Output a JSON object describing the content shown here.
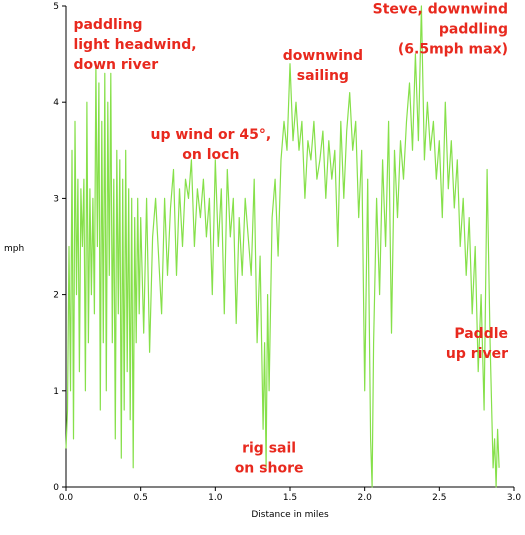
{
  "chart_data": {
    "type": "line",
    "xlabel": "Distance in miles",
    "ylabel": "mph",
    "xlim": [
      0.0,
      3.0
    ],
    "ylim": [
      0,
      5
    ],
    "x_ticks": [
      "0.0",
      "0.5",
      "1.0",
      "1.5",
      "2.0",
      "2.5",
      "3.0"
    ],
    "y_ticks": [
      "0",
      "1",
      "2",
      "3",
      "4",
      "5"
    ],
    "grid": false,
    "line_color": "#86e04a",
    "annotation_color": "#e8291e",
    "series": [
      {
        "name": "",
        "x": [
          0.0,
          0.01,
          0.02,
          0.03,
          0.04,
          0.05,
          0.06,
          0.07,
          0.08,
          0.09,
          0.1,
          0.11,
          0.12,
          0.13,
          0.14,
          0.15,
          0.16,
          0.17,
          0.18,
          0.19,
          0.2,
          0.21,
          0.22,
          0.23,
          0.24,
          0.25,
          0.26,
          0.27,
          0.28,
          0.29,
          0.3,
          0.31,
          0.32,
          0.33,
          0.34,
          0.35,
          0.36,
          0.37,
          0.38,
          0.39,
          0.4,
          0.41,
          0.42,
          0.43,
          0.44,
          0.45,
          0.46,
          0.47,
          0.48,
          0.49,
          0.5,
          0.52,
          0.54,
          0.56,
          0.58,
          0.6,
          0.62,
          0.64,
          0.66,
          0.68,
          0.7,
          0.72,
          0.74,
          0.76,
          0.78,
          0.8,
          0.82,
          0.84,
          0.86,
          0.88,
          0.9,
          0.92,
          0.94,
          0.96,
          0.98,
          1.0,
          1.02,
          1.04,
          1.06,
          1.08,
          1.1,
          1.12,
          1.14,
          1.16,
          1.18,
          1.2,
          1.22,
          1.24,
          1.26,
          1.28,
          1.3,
          1.32,
          1.33,
          1.34,
          1.35,
          1.36,
          1.38,
          1.4,
          1.42,
          1.44,
          1.46,
          1.48,
          1.5,
          1.52,
          1.54,
          1.56,
          1.58,
          1.6,
          1.62,
          1.64,
          1.66,
          1.68,
          1.7,
          1.72,
          1.74,
          1.76,
          1.78,
          1.8,
          1.82,
          1.84,
          1.86,
          1.88,
          1.9,
          1.92,
          1.94,
          1.96,
          1.98,
          2.0,
          2.02,
          2.04,
          2.05,
          2.06,
          2.08,
          2.1,
          2.12,
          2.14,
          2.16,
          2.18,
          2.2,
          2.22,
          2.24,
          2.26,
          2.28,
          2.3,
          2.32,
          2.34,
          2.36,
          2.38,
          2.4,
          2.42,
          2.44,
          2.46,
          2.48,
          2.5,
          2.52,
          2.54,
          2.56,
          2.58,
          2.6,
          2.62,
          2.64,
          2.66,
          2.68,
          2.7,
          2.72,
          2.74,
          2.76,
          2.78,
          2.8,
          2.82,
          2.84,
          2.86,
          2.87,
          2.88,
          2.89,
          2.9
        ],
        "values": [
          0.4,
          0.8,
          2.5,
          1.0,
          3.5,
          0.5,
          3.8,
          2.0,
          3.2,
          1.2,
          3.1,
          2.5,
          3.2,
          1.0,
          4.0,
          1.5,
          3.1,
          2.0,
          3.0,
          1.8,
          4.4,
          2.5,
          4.2,
          0.8,
          3.8,
          1.5,
          4.3,
          1.0,
          4.0,
          2.2,
          4.3,
          1.5,
          3.2,
          0.5,
          3.5,
          1.8,
          3.4,
          0.3,
          3.2,
          0.8,
          3.5,
          1.2,
          3.1,
          0.7,
          3.0,
          0.2,
          2.8,
          1.5,
          3.0,
          1.8,
          2.8,
          1.6,
          3.0,
          1.4,
          2.6,
          3.0,
          2.4,
          1.8,
          3.0,
          2.2,
          2.9,
          3.3,
          2.2,
          3.1,
          2.5,
          3.2,
          3.0,
          3.4,
          2.5,
          3.1,
          2.8,
          3.2,
          2.6,
          3.0,
          2.0,
          3.4,
          2.5,
          3.1,
          1.8,
          3.3,
          2.6,
          3.0,
          1.7,
          2.8,
          2.2,
          3.0,
          2.6,
          2.2,
          3.2,
          1.5,
          2.4,
          0.6,
          1.5,
          0.2,
          2.0,
          1.0,
          2.8,
          3.2,
          2.4,
          3.4,
          3.8,
          3.5,
          4.4,
          3.6,
          4.0,
          3.5,
          3.8,
          3.0,
          3.6,
          3.4,
          3.8,
          3.2,
          3.4,
          3.7,
          3.0,
          3.6,
          3.2,
          3.5,
          2.5,
          3.8,
          3.0,
          3.7,
          4.1,
          3.5,
          3.8,
          2.8,
          3.5,
          1.0,
          3.2,
          0.5,
          0.0,
          1.5,
          3.0,
          2.0,
          3.4,
          2.5,
          3.8,
          1.6,
          3.5,
          2.8,
          3.6,
          3.2,
          3.8,
          4.2,
          3.5,
          4.5,
          3.6,
          5.0,
          3.4,
          4.0,
          3.5,
          3.8,
          3.2,
          3.6,
          2.8,
          4.0,
          3.1,
          3.6,
          2.9,
          3.4,
          2.5,
          3.0,
          2.2,
          2.8,
          1.8,
          2.5,
          1.2,
          2.0,
          0.8,
          3.3,
          1.5,
          0.2,
          0.5,
          0.0,
          0.6,
          0.2
        ]
      }
    ],
    "annotations": [
      {
        "lines": [
          "paddling",
          "light headwind,",
          "down river"
        ],
        "anchor": "start",
        "x_data": 0.05,
        "y_data": 4.76
      },
      {
        "lines": [
          "up wind or 45°,",
          "on loch"
        ],
        "anchor": "middle",
        "x_data": 0.97,
        "y_data": 3.62
      },
      {
        "lines": [
          "downwind",
          "sailing"
        ],
        "anchor": "middle",
        "x_data": 1.72,
        "y_data": 4.44
      },
      {
        "lines": [
          "Steve, downwind",
          "paddling",
          "(6.5mph max)"
        ],
        "anchor": "end",
        "x_data": 2.96,
        "y_data": 4.92
      },
      {
        "lines": [
          "Paddle",
          "up river"
        ],
        "anchor": "end",
        "x_data": 2.96,
        "y_data": 1.55
      },
      {
        "lines": [
          "rig sail",
          "on shore"
        ],
        "anchor": "middle",
        "x_data": 1.36,
        "y_data": 0.36
      }
    ]
  }
}
